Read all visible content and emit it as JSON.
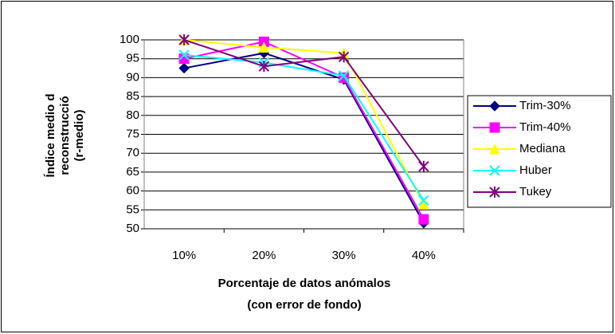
{
  "chart_data": {
    "type": "line",
    "y_label_lines": [
      "Índice medio d",
      "reconstrucció",
      "(r-medio)"
    ],
    "x_label_lines": [
      "Porcentaje de datos anómalos",
      "(con error de fondo)"
    ],
    "categories": [
      "10%",
      "20%",
      "30%",
      "40%"
    ],
    "series": [
      {
        "name": "Trim-30%",
        "color": "#000080",
        "marker": "diamond",
        "values": [
          92.5,
          96.5,
          89.5,
          51.5
        ]
      },
      {
        "name": "Trim-40%",
        "color": "#FF00FF",
        "marker": "square",
        "values": [
          95,
          99.5,
          90,
          52.5
        ]
      },
      {
        "name": "Mediana",
        "color": "#FFFF00",
        "marker": "triangle",
        "values": [
          100,
          98,
          96.5,
          56.5
        ]
      },
      {
        "name": "Huber",
        "color": "#00FFFF",
        "marker": "x",
        "values": [
          96,
          94,
          90.5,
          57.5
        ]
      },
      {
        "name": "Tukey",
        "color": "#800080",
        "marker": "star",
        "values": [
          100,
          93,
          95.5,
          66.5
        ]
      }
    ],
    "ylim": [
      50,
      100
    ],
    "yticks": [
      50,
      55,
      60,
      65,
      70,
      75,
      80,
      85,
      90,
      95,
      100
    ],
    "grid": true,
    "legend": "right"
  }
}
